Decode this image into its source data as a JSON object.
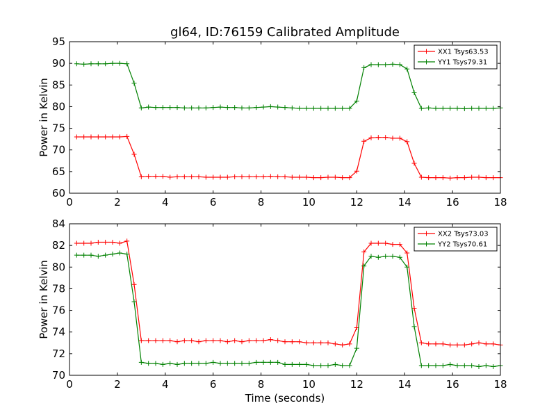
{
  "title": "gl64, ID:76159 Calibrated Amplitude",
  "colors": {
    "red": "#ff0000",
    "green": "#008000",
    "axis": "#000000"
  },
  "chart_data": [
    {
      "type": "line",
      "xlabel": "",
      "ylabel": "Power in Kelvin",
      "xlim": [
        0,
        18
      ],
      "ylim": [
        60,
        95
      ],
      "xticks": [
        "0",
        "2",
        "4",
        "6",
        "8",
        "10",
        "12",
        "14",
        "16",
        "18"
      ],
      "yticks": [
        "60",
        "65",
        "70",
        "75",
        "80",
        "85",
        "90",
        "95"
      ],
      "grid": false,
      "legend_position": "top-right",
      "x": [
        0.3,
        0.6,
        0.9,
        1.2,
        1.5,
        1.8,
        2.1,
        2.4,
        2.7,
        3.0,
        3.3,
        3.6,
        3.9,
        4.2,
        4.5,
        4.8,
        5.1,
        5.4,
        5.7,
        6.0,
        6.3,
        6.6,
        6.9,
        7.2,
        7.5,
        7.8,
        8.1,
        8.4,
        8.7,
        9.0,
        9.3,
        9.6,
        9.9,
        10.2,
        10.5,
        10.8,
        11.1,
        11.4,
        11.7,
        12.0,
        12.3,
        12.6,
        12.9,
        13.2,
        13.5,
        13.8,
        14.1,
        14.4,
        14.7,
        15.0,
        15.3,
        15.6,
        15.9,
        16.2,
        16.5,
        16.8,
        17.1,
        17.4,
        17.7,
        18.0
      ],
      "series": [
        {
          "name": "XX1 Tsys63.53",
          "color": "#ff0000",
          "values": [
            73.0,
            73.0,
            73.0,
            73.0,
            73.0,
            73.0,
            73.0,
            73.1,
            69.0,
            63.8,
            63.9,
            63.9,
            63.9,
            63.7,
            63.8,
            63.8,
            63.8,
            63.8,
            63.7,
            63.7,
            63.7,
            63.7,
            63.8,
            63.8,
            63.8,
            63.8,
            63.8,
            63.9,
            63.8,
            63.8,
            63.7,
            63.7,
            63.7,
            63.6,
            63.6,
            63.7,
            63.7,
            63.6,
            63.6,
            65.1,
            72.0,
            72.8,
            72.9,
            72.9,
            72.7,
            72.7,
            71.9,
            66.9,
            63.7,
            63.6,
            63.6,
            63.6,
            63.5,
            63.6,
            63.6,
            63.7,
            63.7,
            63.6,
            63.6,
            63.6
          ]
        },
        {
          "name": "YY1 Tsys79.31",
          "color": "#008000",
          "values": [
            89.9,
            89.8,
            89.9,
            89.9,
            89.9,
            90.0,
            90.0,
            89.9,
            85.4,
            79.7,
            79.9,
            79.8,
            79.8,
            79.8,
            79.8,
            79.7,
            79.7,
            79.7,
            79.7,
            79.8,
            79.9,
            79.8,
            79.8,
            79.7,
            79.7,
            79.8,
            79.9,
            80.0,
            79.9,
            79.8,
            79.7,
            79.6,
            79.6,
            79.6,
            79.6,
            79.6,
            79.6,
            79.6,
            79.6,
            81.3,
            89.0,
            89.7,
            89.7,
            89.7,
            89.8,
            89.7,
            88.7,
            83.2,
            79.6,
            79.7,
            79.6,
            79.6,
            79.6,
            79.6,
            79.5,
            79.6,
            79.6,
            79.6,
            79.6,
            79.7
          ]
        }
      ]
    },
    {
      "type": "line",
      "xlabel": "Time (seconds)",
      "ylabel": "Power in Kelvin",
      "xlim": [
        0,
        18
      ],
      "ylim": [
        70,
        84
      ],
      "xticks": [
        "0",
        "2",
        "4",
        "6",
        "8",
        "10",
        "12",
        "14",
        "16",
        "18"
      ],
      "yticks": [
        "70",
        "72",
        "74",
        "76",
        "78",
        "80",
        "82",
        "84"
      ],
      "grid": false,
      "legend_position": "top-right",
      "x": [
        0.3,
        0.6,
        0.9,
        1.2,
        1.5,
        1.8,
        2.1,
        2.4,
        2.7,
        3.0,
        3.3,
        3.6,
        3.9,
        4.2,
        4.5,
        4.8,
        5.1,
        5.4,
        5.7,
        6.0,
        6.3,
        6.6,
        6.9,
        7.2,
        7.5,
        7.8,
        8.1,
        8.4,
        8.7,
        9.0,
        9.3,
        9.6,
        9.9,
        10.2,
        10.5,
        10.8,
        11.1,
        11.4,
        11.7,
        12.0,
        12.3,
        12.6,
        12.9,
        13.2,
        13.5,
        13.8,
        14.1,
        14.4,
        14.7,
        15.0,
        15.3,
        15.6,
        15.9,
        16.2,
        16.5,
        16.8,
        17.1,
        17.4,
        17.7,
        18.0
      ],
      "series": [
        {
          "name": "XX2 Tsys73.03",
          "color": "#ff0000",
          "values": [
            82.2,
            82.2,
            82.2,
            82.3,
            82.3,
            82.3,
            82.2,
            82.4,
            78.4,
            73.2,
            73.2,
            73.2,
            73.2,
            73.2,
            73.1,
            73.2,
            73.2,
            73.1,
            73.2,
            73.2,
            73.2,
            73.1,
            73.2,
            73.1,
            73.2,
            73.2,
            73.2,
            73.3,
            73.2,
            73.1,
            73.1,
            73.1,
            73.0,
            73.0,
            73.0,
            73.0,
            72.9,
            72.8,
            72.9,
            74.4,
            81.4,
            82.2,
            82.2,
            82.2,
            82.1,
            82.1,
            81.3,
            76.2,
            73.0,
            72.9,
            72.9,
            72.9,
            72.8,
            72.8,
            72.8,
            72.9,
            73.0,
            72.9,
            72.9,
            72.8
          ]
        },
        {
          "name": "YY2 Tsys70.61",
          "color": "#008000",
          "values": [
            81.1,
            81.1,
            81.1,
            81.0,
            81.1,
            81.2,
            81.3,
            81.2,
            76.8,
            71.2,
            71.1,
            71.1,
            71.0,
            71.1,
            71.0,
            71.1,
            71.1,
            71.1,
            71.1,
            71.2,
            71.1,
            71.1,
            71.1,
            71.1,
            71.1,
            71.2,
            71.2,
            71.2,
            71.2,
            71.0,
            71.0,
            71.0,
            71.0,
            70.9,
            70.9,
            70.9,
            71.0,
            70.9,
            70.9,
            72.5,
            80.1,
            81.0,
            80.9,
            81.0,
            81.0,
            80.9,
            80.0,
            74.5,
            70.9,
            70.9,
            70.9,
            70.9,
            71.0,
            70.9,
            70.9,
            70.9,
            70.8,
            70.9,
            70.8,
            70.9
          ]
        }
      ]
    }
  ]
}
